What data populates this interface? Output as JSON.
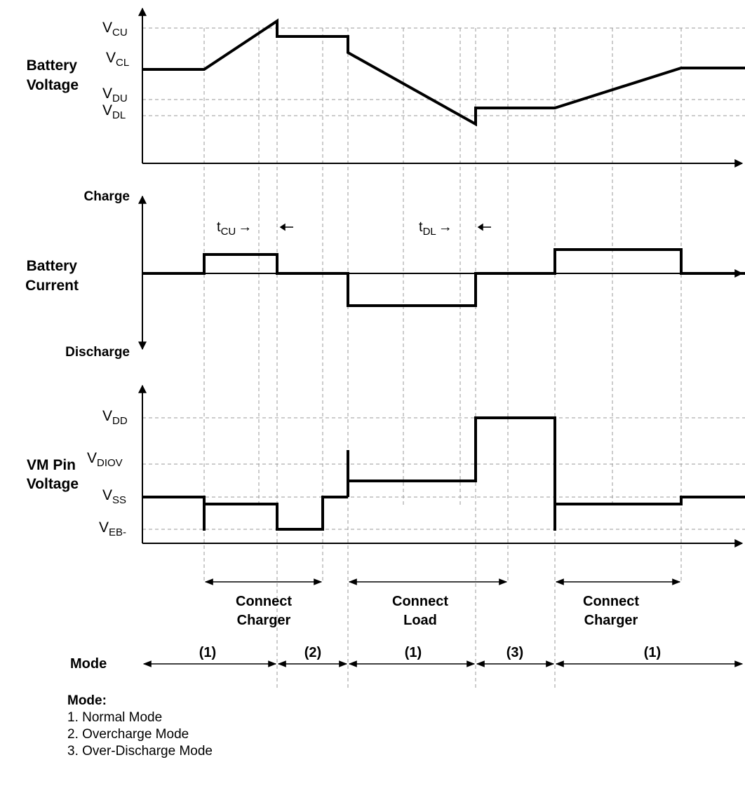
{
  "panels": {
    "voltage": {
      "label_line1": "Battery",
      "label_line2": "Voltage",
      "levels": [
        {
          "base": "V",
          "sub": "CU"
        },
        {
          "base": "V",
          "sub": "CL"
        },
        {
          "base": "V",
          "sub": "DU"
        },
        {
          "base": "V",
          "sub": "DL"
        }
      ]
    },
    "current": {
      "label_line1": "Battery",
      "label_line2": "Current",
      "top_label": "Charge",
      "bottom_label": "Discharge",
      "delays": [
        {
          "base": "t",
          "sub": "CU",
          "arrow": "→"
        },
        {
          "base": "t",
          "sub": "DL",
          "arrow": "→"
        }
      ]
    },
    "vm": {
      "label_line1": "VM Pin",
      "label_line2": "Voltage",
      "levels": [
        {
          "base": "V",
          "sub": "DD"
        },
        {
          "base": "V",
          "sub": "DIOV"
        },
        {
          "base": "V",
          "sub": "SS"
        },
        {
          "base": "V",
          "sub": "EB-"
        }
      ]
    }
  },
  "events": [
    {
      "line1": "Connect",
      "line2": "Charger"
    },
    {
      "line1": "Connect",
      "line2": "Load"
    },
    {
      "line1": "Connect",
      "line2": "Charger"
    }
  ],
  "mode_row": {
    "label": "Mode",
    "segments": [
      "(1)",
      "(2)",
      "(1)",
      "(3)",
      "(1)"
    ]
  },
  "legend": {
    "title": "Mode:",
    "items": [
      "1. Normal Mode",
      "2. Overcharge Mode",
      "3. Over-Discharge Mode"
    ]
  }
}
